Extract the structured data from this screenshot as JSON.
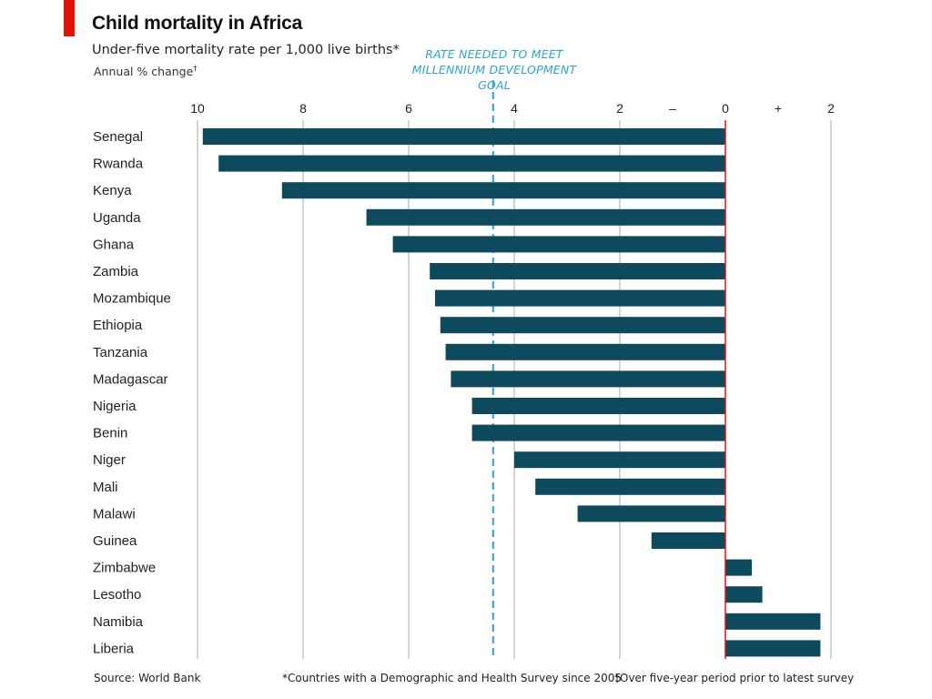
{
  "header": {
    "title": "Child mortality in Africa",
    "subtitle": "Under-five mortality rate per 1,000 live births*",
    "measure": "Annual % change",
    "measure_mark": "†"
  },
  "annotation": {
    "line1": "RATE NEEDED TO MEET",
    "line2": "MILLENNIUM DEVELOPMENT GOAL",
    "value": 4.4
  },
  "footer": {
    "source": "Source: World Bank",
    "note1": "*Countries with a Demographic and Health Survey since 2005",
    "note2": "†Over five-year period prior to latest survey"
  },
  "colors": {
    "bar": "#0d4a5e",
    "zero_line": "#e3120b",
    "grid": "#bcbcbc",
    "goal_line": "#2aa4d8",
    "accent": "#e3120b"
  },
  "chart_data": {
    "type": "bar",
    "orientation": "horizontal",
    "x_axis_reversed_for_decline": true,
    "xlim": [
      -10,
      2
    ],
    "xticks": [
      {
        "value": -10,
        "label": "10"
      },
      {
        "value": -8,
        "label": "8"
      },
      {
        "value": -6,
        "label": "6"
      },
      {
        "value": -4,
        "label": "4"
      },
      {
        "value": -2,
        "label": "2"
      },
      {
        "value": -1,
        "label": "–"
      },
      {
        "value": 0,
        "label": "0"
      },
      {
        "value": 1,
        "label": "+"
      },
      {
        "value": 2,
        "label": "2"
      }
    ],
    "grid": true,
    "categories": [
      "Senegal",
      "Rwanda",
      "Kenya",
      "Uganda",
      "Ghana",
      "Zambia",
      "Mozambique",
      "Ethiopia",
      "Tanzania",
      "Madagascar",
      "Nigeria",
      "Benin",
      "Niger",
      "Mali",
      "Malawi",
      "Guinea",
      "Zimbabwe",
      "Lesotho",
      "Namibia",
      "Liberia"
    ],
    "values": [
      -9.9,
      -9.6,
      -8.4,
      -6.8,
      -6.3,
      -5.6,
      -5.5,
      -5.4,
      -5.3,
      -5.2,
      -4.8,
      -4.8,
      -4.0,
      -3.6,
      -2.8,
      -1.4,
      0.5,
      0.7,
      1.8,
      1.8
    ]
  }
}
